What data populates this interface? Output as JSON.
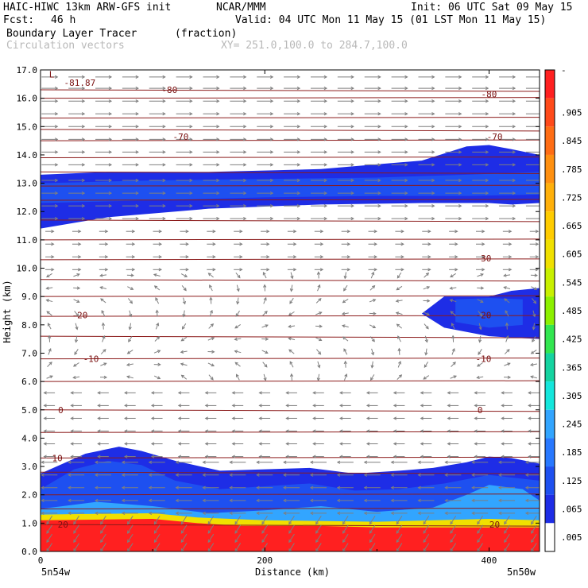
{
  "header": {
    "model": "HAIC-HIWC 13km ARW-GFS init",
    "org": "NCAR/MMM",
    "init": "Init: 06 UTC Sat 09 May 15",
    "fcst_label": "Fcst:",
    "fcst_value": "46 h",
    "valid": "Valid: 04 UTC Mon 11 May 15 (01 LST Mon 11 May 15)",
    "field": "Boundary Layer Tracer",
    "units": "(fraction)",
    "vectors": "Circulation vectors",
    "xy": "XY= 251.0,100.0 to 284.7,100.0"
  },
  "chart_data": {
    "type": "heatmap",
    "title": "Boundary Layer Tracer",
    "xlabel": "Distance (km)",
    "ylabel": "Height (km)",
    "xlim": [
      0,
      445
    ],
    "ylim": [
      0.0,
      17.0
    ],
    "x_ticks": [
      "0",
      "200",
      "400"
    ],
    "y_ticks": [
      "0.0",
      "1.0",
      "2.0",
      "3.0",
      "4.0",
      "5.0",
      "6.0",
      "7.0",
      "8.0",
      "9.0",
      "10.0",
      "11.0",
      "12.0",
      "13.0",
      "14.0",
      "15.0",
      "16.0",
      "17.0"
    ],
    "x_end_labels": {
      "left": "5n54w",
      "right": "5n50w"
    },
    "colorbar": {
      "labels": [
        "-",
        ".905",
        ".845",
        ".785",
        ".725",
        ".665",
        ".605",
        ".545",
        ".485",
        ".425",
        ".365",
        ".305",
        ".245",
        ".185",
        ".125",
        ".065",
        ".005"
      ],
      "colors": [
        "#ff2020",
        "#ff4a1a",
        "#ff6d14",
        "#ff9010",
        "#ffb00a",
        "#ffcc00",
        "#f0e000",
        "#c8f000",
        "#8cf000",
        "#32e650",
        "#14d3a0",
        "#14e6dc",
        "#32a5ff",
        "#2878ff",
        "#1e50f0",
        "#1e2de6",
        "#ffffff"
      ]
    },
    "contour_labels": [
      {
        "text": "L",
        "x": 10,
        "y": 16.85
      },
      {
        "text": "-81.87",
        "x": 35,
        "y": 16.55
      },
      {
        "text": "-80",
        "x": 115,
        "y": 16.3
      },
      {
        "text": "-80",
        "x": 400,
        "y": 16.15
      },
      {
        "text": "-70",
        "x": 125,
        "y": 14.65
      },
      {
        "text": "-70",
        "x": 405,
        "y": 14.65
      },
      {
        "text": "-30",
        "x": 395,
        "y": 10.35
      },
      {
        "text": "-20",
        "x": 35,
        "y": 8.35
      },
      {
        "text": "-20",
        "x": 395,
        "y": 8.35
      },
      {
        "text": "-10",
        "x": 45,
        "y": 6.8
      },
      {
        "text": "-10",
        "x": 395,
        "y": 6.8
      },
      {
        "text": "0",
        "x": 18,
        "y": 5.0
      },
      {
        "text": "0",
        "x": 392,
        "y": 5.0
      },
      {
        "text": "10",
        "x": 15,
        "y": 3.3
      },
      {
        "text": "20",
        "x": 20,
        "y": 0.95
      },
      {
        "text": "20",
        "x": 405,
        "y": 0.95
      }
    ],
    "isotherm_heights_km": [
      16.3,
      16.0,
      15.3,
      14.9,
      14.5,
      13.9,
      13.4,
      12.9,
      12.4,
      11.7,
      11.0,
      10.3,
      9.6,
      9.0,
      8.3,
      7.6,
      6.8,
      6.0,
      5.0,
      4.2,
      3.3,
      2.8,
      2.0,
      1.5,
      0.95
    ],
    "tracer_regions": [
      {
        "name": "upper-band",
        "level": 0.03,
        "x": [
          0,
          60,
          150,
          250,
          340,
          380,
          400,
          420,
          445
        ],
        "top": [
          13.3,
          13.4,
          13.4,
          13.5,
          13.8,
          14.3,
          14.35,
          14.2,
          14.0
        ],
        "bottom": [
          11.4,
          11.8,
          12.1,
          12.25,
          12.3,
          12.3,
          12.3,
          12.25,
          12.3
        ]
      },
      {
        "name": "upper-band-core",
        "level": 0.07,
        "x": [
          0,
          100,
          200,
          300,
          380,
          445
        ],
        "top": [
          13.0,
          13.1,
          13.15,
          13.2,
          13.3,
          13.4
        ],
        "bottom": [
          12.3,
          12.4,
          12.5,
          12.55,
          12.55,
          12.6
        ]
      },
      {
        "name": "mid-cloud",
        "level": 0.03,
        "x": [
          340,
          360,
          400,
          420,
          445
        ],
        "top": [
          8.4,
          9.0,
          9.0,
          9.2,
          9.3
        ],
        "bottom": [
          8.4,
          7.9,
          7.6,
          7.55,
          7.5
        ]
      },
      {
        "name": "mid-cloud-core",
        "level": 0.09,
        "x": [
          370,
          400,
          430
        ],
        "top": [
          8.9,
          8.95,
          8.9
        ],
        "bottom": [
          8.1,
          7.9,
          8.0
        ]
      },
      {
        "name": "low-blue",
        "level": 0.03,
        "x": [
          0,
          40,
          70,
          90,
          120,
          160,
          200,
          240,
          280,
          320,
          350,
          380,
          400,
          420,
          445
        ],
        "top": [
          2.75,
          3.45,
          3.7,
          3.55,
          3.2,
          2.85,
          2.9,
          2.95,
          2.75,
          2.85,
          2.95,
          3.15,
          3.35,
          3.3,
          3.1
        ],
        "bottom": [
          0.8,
          0.8,
          0.8,
          0.8,
          0.8,
          0.8,
          0.8,
          0.8,
          0.8,
          0.8,
          0.8,
          0.8,
          0.8,
          0.8,
          0.8
        ]
      },
      {
        "name": "low-cyan",
        "level": 0.12,
        "x": [
          0,
          30,
          60,
          90,
          120,
          160,
          200,
          240,
          280,
          320,
          360,
          400,
          445
        ],
        "top": [
          2.2,
          2.9,
          3.2,
          3.05,
          2.5,
          2.2,
          2.3,
          2.4,
          2.15,
          2.2,
          2.4,
          2.7,
          2.5
        ],
        "bottom": [
          0.8,
          0.8,
          0.8,
          0.8,
          0.8,
          0.8,
          0.8,
          0.8,
          0.8,
          0.8,
          0.8,
          0.8,
          0.8
        ]
      },
      {
        "name": "low-green",
        "level": 0.2,
        "x": [
          0,
          50,
          100,
          150,
          200,
          250,
          300,
          350,
          380,
          400,
          430,
          445
        ],
        "top": [
          1.5,
          1.75,
          1.6,
          1.35,
          1.45,
          1.6,
          1.4,
          1.55,
          2.0,
          2.35,
          2.2,
          1.8
        ],
        "bottom": [
          0.8,
          0.8,
          0.8,
          0.8,
          0.8,
          0.8,
          0.8,
          0.8,
          0.8,
          0.8,
          0.8,
          0.8
        ]
      },
      {
        "name": "low-yellow",
        "level": 0.55,
        "x": [
          0,
          100,
          140,
          200,
          300,
          400,
          445
        ],
        "top": [
          1.3,
          1.35,
          1.2,
          1.1,
          1.05,
          1.15,
          1.1
        ],
        "bottom": [
          0.8,
          0.8,
          0.8,
          0.8,
          0.8,
          0.8,
          0.8
        ]
      },
      {
        "name": "surface-red",
        "level": 0.95,
        "x": [
          0,
          100,
          140,
          180,
          250,
          300,
          360,
          445
        ],
        "top": [
          1.1,
          1.15,
          1.0,
          0.9,
          0.9,
          0.85,
          0.85,
          0.85
        ],
        "bottom": [
          0.0,
          0.0,
          0.0,
          0.0,
          0.0,
          0.0,
          0.0,
          0.0
        ]
      }
    ],
    "wind_layers": [
      {
        "z": [
          16.6,
          17.0
        ],
        "direction": "east",
        "speed": 1.0
      },
      {
        "z": [
          13.5,
          16.6
        ],
        "direction": "east",
        "speed": 1.0
      },
      {
        "z": [
          11.6,
          13.5
        ],
        "direction": "east",
        "speed": 1.0
      },
      {
        "z": [
          9.8,
          11.6
        ],
        "direction": "east",
        "speed": 0.4
      },
      {
        "z": [
          6.0,
          9.8
        ],
        "direction": "variable",
        "speed": 0.25
      },
      {
        "z": [
          3.2,
          6.0
        ],
        "direction": "west",
        "speed": 0.6
      },
      {
        "z": [
          1.2,
          3.2
        ],
        "direction": "west",
        "speed": 1.0
      },
      {
        "z": [
          0.0,
          1.2
        ],
        "direction": "south-west",
        "speed": 0.5
      }
    ]
  }
}
